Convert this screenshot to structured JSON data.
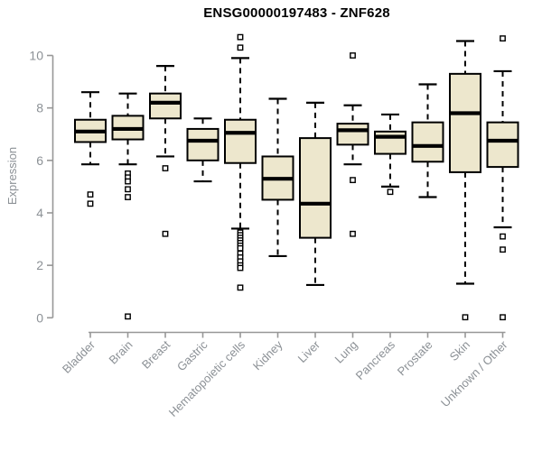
{
  "header": {
    "title": "ENSG00000197483 - ZNF628"
  },
  "axes": {
    "ylabel": "Expression"
  },
  "chart_data": {
    "type": "boxplot",
    "title": "ENSG00000197483 - ZNF628",
    "xlabel": "",
    "ylabel": "Expression",
    "ylim": [
      0,
      10.8
    ],
    "yticks": [
      0,
      2,
      4,
      6,
      8,
      10
    ],
    "grid": false,
    "legend": "none",
    "categories": [
      "Bladder",
      "Brain",
      "Breast",
      "Gastric",
      "Hematopoietic cells",
      "Kidney",
      "Liver",
      "Lung",
      "Pancreas",
      "Prostate",
      "Skin",
      "Unknown / Other"
    ],
    "series": [
      {
        "name": "Bladder",
        "whisker_low": 5.85,
        "q1": 6.7,
        "median": 7.1,
        "q3": 7.55,
        "whisker_high": 8.6,
        "outliers": [
          4.7,
          4.35
        ]
      },
      {
        "name": "Brain",
        "whisker_low": 5.85,
        "q1": 6.8,
        "median": 7.2,
        "q3": 7.7,
        "whisker_high": 8.55,
        "outliers": [
          5.5,
          5.35,
          5.2,
          4.9,
          4.6,
          0.05
        ]
      },
      {
        "name": "Breast",
        "whisker_low": 6.15,
        "q1": 7.6,
        "median": 8.2,
        "q3": 8.55,
        "whisker_high": 9.6,
        "outliers": [
          5.7,
          3.2
        ]
      },
      {
        "name": "Gastric",
        "whisker_low": 5.2,
        "q1": 6.0,
        "median": 6.75,
        "q3": 7.2,
        "whisker_high": 7.6,
        "outliers": []
      },
      {
        "name": "Hematopoietic cells",
        "whisker_low": 3.4,
        "q1": 5.9,
        "median": 7.05,
        "q3": 7.55,
        "whisker_high": 9.9,
        "outliers": [
          10.7,
          10.3,
          3.25,
          3.15,
          3.05,
          2.95,
          2.85,
          2.75,
          2.65,
          2.45,
          2.3,
          2.15,
          2.0,
          1.9,
          1.15
        ]
      },
      {
        "name": "Kidney",
        "whisker_low": 2.35,
        "q1": 4.5,
        "median": 5.3,
        "q3": 6.15,
        "whisker_high": 8.35,
        "outliers": []
      },
      {
        "name": "Liver",
        "whisker_low": 1.25,
        "q1": 3.05,
        "median": 4.35,
        "q3": 6.85,
        "whisker_high": 8.2,
        "outliers": []
      },
      {
        "name": "Lung",
        "whisker_low": 5.85,
        "q1": 6.6,
        "median": 7.15,
        "q3": 7.4,
        "whisker_high": 8.1,
        "outliers": [
          10.0,
          5.25,
          3.2
        ]
      },
      {
        "name": "Pancreas",
        "whisker_low": 5.0,
        "q1": 6.25,
        "median": 6.9,
        "q3": 7.1,
        "whisker_high": 7.75,
        "outliers": [
          4.8
        ]
      },
      {
        "name": "Prostate",
        "whisker_low": 4.6,
        "q1": 5.95,
        "median": 6.55,
        "q3": 7.45,
        "whisker_high": 8.9,
        "outliers": []
      },
      {
        "name": "Skin",
        "whisker_low": 1.3,
        "q1": 5.55,
        "median": 7.8,
        "q3": 9.3,
        "whisker_high": 10.55,
        "outliers": [
          0.02
        ]
      },
      {
        "name": "Unknown / Other",
        "whisker_low": 3.45,
        "q1": 5.75,
        "median": 6.75,
        "q3": 7.45,
        "whisker_high": 9.4,
        "outliers": [
          10.65,
          3.1,
          2.6,
          0.02
        ]
      }
    ],
    "style": {
      "box_fill": "#EDE7CD",
      "box_border": "#000000",
      "median_color": "#000000",
      "outlier_fill": "#FFFFFF",
      "whisker_style": "dashed",
      "axis_color": "#979797",
      "tick_label_color": "#8C9196",
      "title_color": "#000000",
      "background": "#FFFFFF"
    }
  }
}
